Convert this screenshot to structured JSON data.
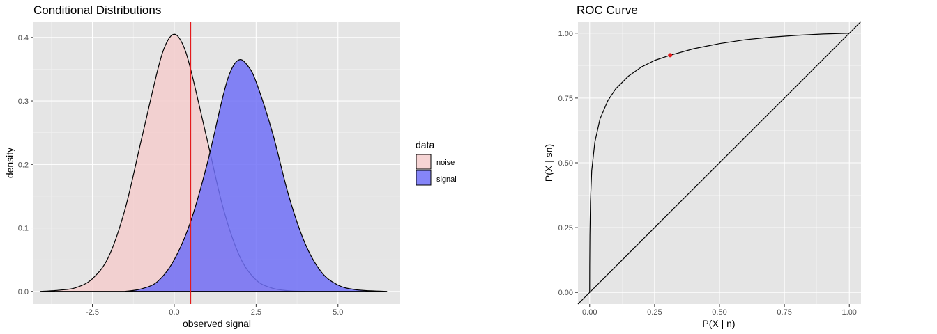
{
  "chart_data": [
    {
      "type": "area",
      "title": "Conditional Distributions",
      "xlabel": "observed signal",
      "ylabel": "density",
      "xlim": [
        -4.3,
        6.9
      ],
      "ylim": [
        -0.02,
        0.425
      ],
      "xticks": [
        -2.5,
        0.0,
        2.5,
        5.0
      ],
      "xtick_labels": [
        "-2.5",
        "0.0",
        "2.5",
        "5.0"
      ],
      "yticks": [
        0.0,
        0.1,
        0.2,
        0.3,
        0.4
      ],
      "ytick_labels": [
        "0.0",
        "0.1",
        "0.2",
        "0.3",
        "0.4"
      ],
      "threshold": 0.5,
      "threshold_color": "#e41a1c",
      "grid": true,
      "legend": {
        "title": "data",
        "placement": "right",
        "entries": [
          {
            "label": "noise",
            "color": "#f4cccc"
          },
          {
            "label": "signal",
            "color": "#7070f7"
          }
        ]
      },
      "series": [
        {
          "name": "noise",
          "color": "#f4cccc",
          "x": [
            -4.1,
            -3.5,
            -3.0,
            -2.5,
            -2.0,
            -1.5,
            -1.0,
            -0.5,
            -0.25,
            0.0,
            0.25,
            0.5,
            1.0,
            1.5,
            2.0,
            2.5,
            3.0,
            3.5,
            4.0
          ],
          "y": [
            0.0,
            0.002,
            0.006,
            0.02,
            0.055,
            0.13,
            0.24,
            0.35,
            0.39,
            0.405,
            0.39,
            0.35,
            0.24,
            0.13,
            0.055,
            0.018,
            0.005,
            0.001,
            0.0
          ]
        },
        {
          "name": "signal",
          "color": "#7070f7",
          "x": [
            -1.5,
            -1.0,
            -0.5,
            0.0,
            0.5,
            1.0,
            1.5,
            1.75,
            2.0,
            2.25,
            2.5,
            3.0,
            3.5,
            4.0,
            4.5,
            5.0,
            5.5,
            6.0,
            6.5
          ],
          "y": [
            0.0,
            0.004,
            0.016,
            0.05,
            0.11,
            0.2,
            0.31,
            0.35,
            0.365,
            0.355,
            0.33,
            0.25,
            0.15,
            0.075,
            0.03,
            0.01,
            0.003,
            0.001,
            0.0
          ]
        }
      ]
    },
    {
      "type": "line",
      "title": "ROC Curve",
      "xlabel": "P(X | n)",
      "ylabel": "P(X | sn)",
      "xlim": [
        -0.045,
        1.045
      ],
      "ylim": [
        -0.045,
        1.045
      ],
      "xticks": [
        0.0,
        0.25,
        0.5,
        0.75,
        1.0
      ],
      "xtick_labels": [
        "0.00",
        "0.25",
        "0.50",
        "0.75",
        "1.00"
      ],
      "yticks": [
        0.0,
        0.25,
        0.5,
        0.75,
        1.0
      ],
      "ytick_labels": [
        "0.00",
        "0.25",
        "0.50",
        "0.75",
        "1.00"
      ],
      "grid": true,
      "curve": {
        "x": [
          0.0,
          0.0002,
          0.001,
          0.003,
          0.008,
          0.02,
          0.04,
          0.07,
          0.1,
          0.15,
          0.2,
          0.25,
          0.31,
          0.4,
          0.5,
          0.6,
          0.7,
          0.8,
          0.9,
          1.0
        ],
        "y": [
          0.0,
          0.1,
          0.22,
          0.35,
          0.47,
          0.58,
          0.67,
          0.74,
          0.785,
          0.835,
          0.87,
          0.895,
          0.915,
          0.94,
          0.96,
          0.975,
          0.985,
          0.992,
          0.997,
          1.0
        ]
      },
      "diagonal": true,
      "highlight_point": {
        "x": 0.31,
        "y": 0.915,
        "color": "#e41a1c"
      }
    }
  ]
}
